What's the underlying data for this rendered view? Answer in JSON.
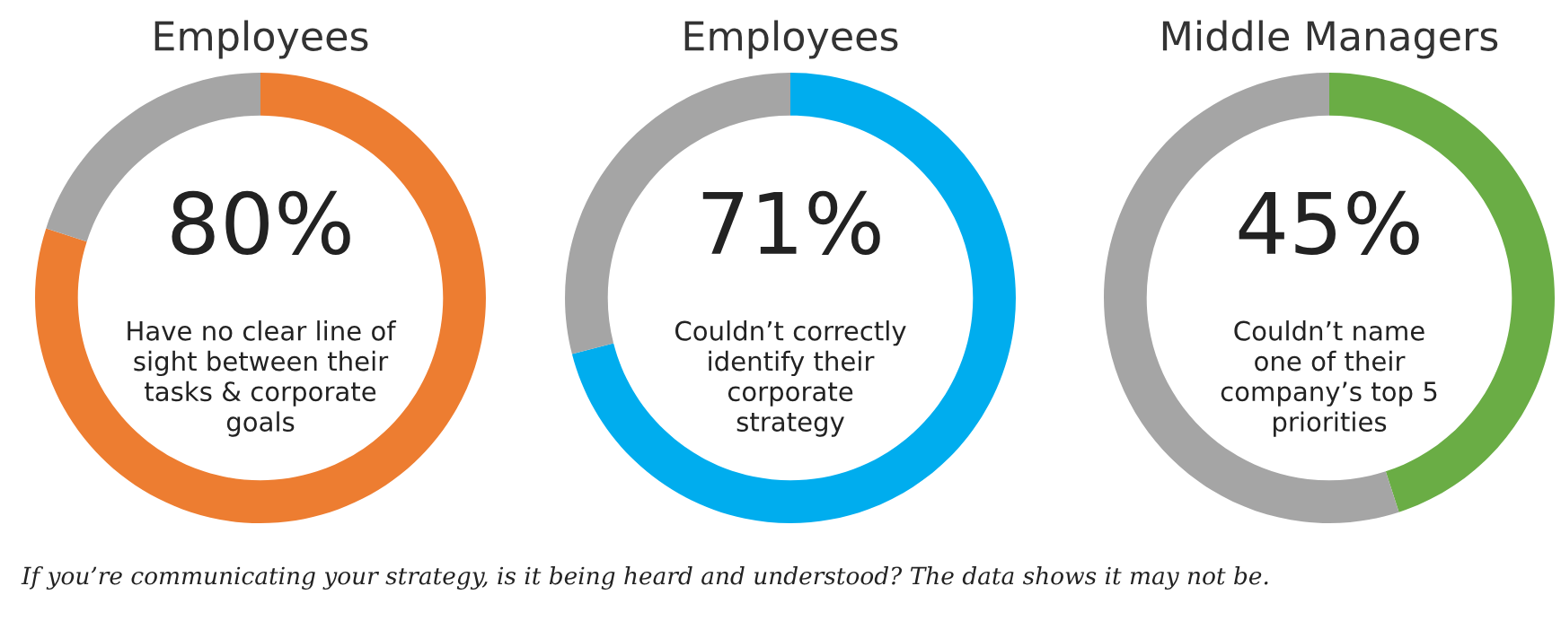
{
  "chart_data": [
    {
      "type": "donut",
      "title": "Employees",
      "categories": [
        null,
        null
      ],
      "values": [
        80,
        20
      ],
      "colors": [
        "#ed7d31",
        "#a5a5a5"
      ],
      "value_labels": [
        "80%",
        null
      ],
      "annotations": [
        "Have no clear line of\nsight between their\ntasks & corporate\ngoals",
        "If you’re communicating your strategy, is it being heard and understood? The data shows it may not be."
      ]
    },
    {
      "type": "donut",
      "title": "Employees",
      "categories": [
        null,
        null
      ],
      "values": [
        71,
        29
      ],
      "colors": [
        "#00adee",
        "#a5a5a5"
      ],
      "value_labels": [
        "71%",
        null
      ],
      "annotations": [
        "Couldn’t correctly\nidentify their\ncorporate\nstrategy"
      ]
    },
    {
      "type": "donut",
      "title": "Middle Managers",
      "categories": [
        null,
        null
      ],
      "values": [
        45,
        55
      ],
      "colors": [
        "#6aad45",
        "#a5a5a5"
      ],
      "value_labels": [
        "45%",
        null
      ],
      "annotations": [
        "Couldn’t name\none of their\ncompany’s top 5\npriorities"
      ]
    }
  ]
}
